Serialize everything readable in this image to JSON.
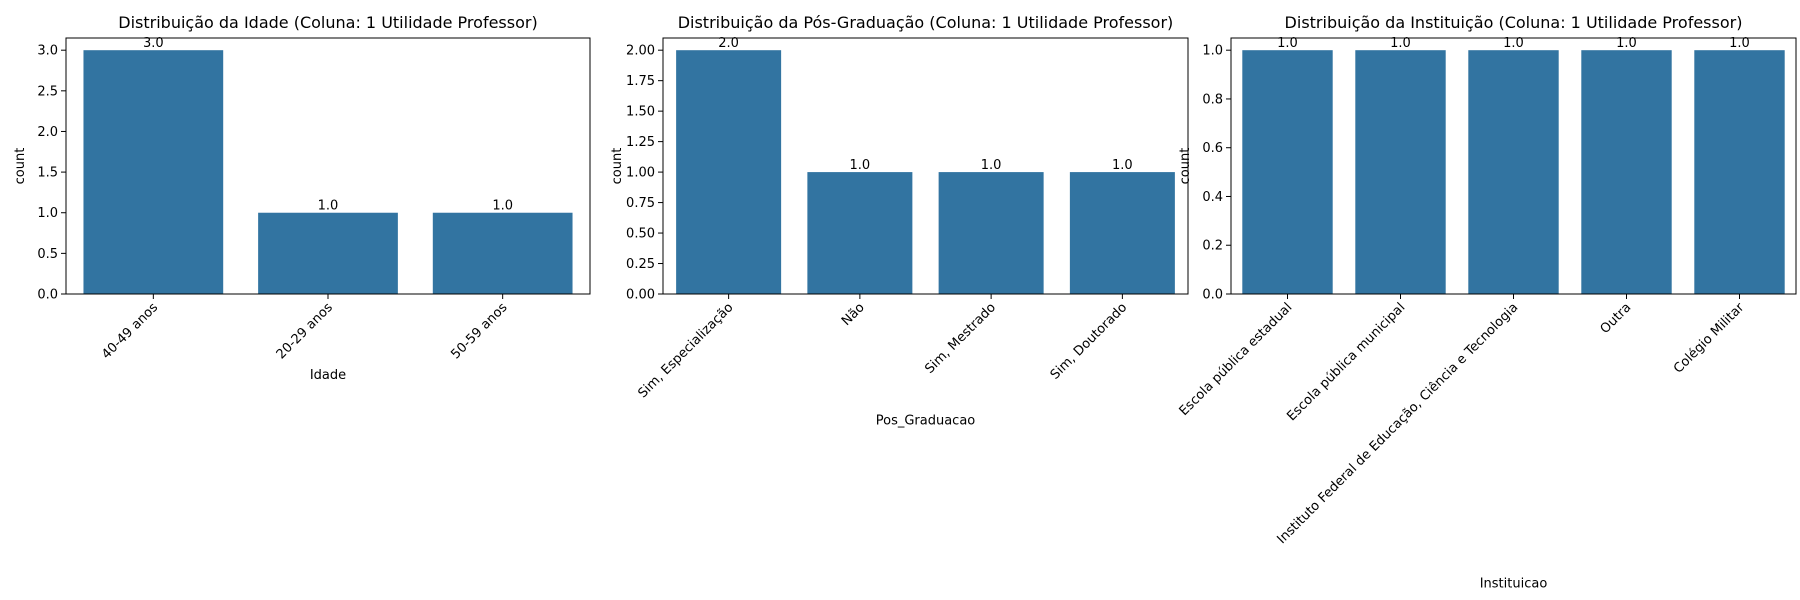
{
  "colors": {
    "bar": "#3274a1"
  },
  "chart_data": [
    {
      "type": "bar",
      "title": "Distribuição da Idade (Coluna: 1 Utilidade Professor)",
      "xlabel": "Idade",
      "ylabel": "count",
      "categories": [
        "40-49 anos",
        "20-29 anos",
        "50-59 anos"
      ],
      "values": [
        3,
        1,
        1
      ],
      "data_labels": [
        "3.0",
        "1.0",
        "1.0"
      ],
      "ylim": [
        0,
        3.15
      ],
      "yticks": [
        0,
        0.5,
        1,
        1.5,
        2,
        2.5,
        3
      ],
      "ytick_labels": [
        "0.0",
        "0.5",
        "1.0",
        "1.5",
        "2.0",
        "2.5",
        "3.0"
      ],
      "grid": false
    },
    {
      "type": "bar",
      "title": "Distribuição da Pós-Graduação (Coluna: 1 Utilidade Professor)",
      "xlabel": "Pos_Graduacao",
      "ylabel": "count",
      "categories": [
        "Sim, Especialização",
        "Não",
        "Sim, Mestrado",
        "Sim, Doutorado"
      ],
      "values": [
        2,
        1,
        1,
        1
      ],
      "data_labels": [
        "2.0",
        "1.0",
        "1.0",
        "1.0"
      ],
      "ylim": [
        0,
        2.1
      ],
      "yticks": [
        0,
        0.25,
        0.5,
        0.75,
        1,
        1.25,
        1.5,
        1.75,
        2
      ],
      "ytick_labels": [
        "0.00",
        "0.25",
        "0.50",
        "0.75",
        "1.00",
        "1.25",
        "1.50",
        "1.75",
        "2.00"
      ],
      "grid": false
    },
    {
      "type": "bar",
      "title": "Distribuição da Instituição (Coluna: 1 Utilidade Professor)",
      "xlabel": "Instituicao",
      "ylabel": "count",
      "categories": [
        "Escola pública estadual",
        "Escola pública municipal",
        "Instituto Federal de Educação, Ciência e Tecnologia",
        "Outra",
        "Colégio Militar"
      ],
      "values": [
        1,
        1,
        1,
        1,
        1
      ],
      "data_labels": [
        "1.0",
        "1.0",
        "1.0",
        "1.0",
        "1.0"
      ],
      "ylim": [
        0,
        1.05
      ],
      "yticks": [
        0,
        0.2,
        0.4,
        0.6,
        0.8,
        1
      ],
      "ytick_labels": [
        "0.0",
        "0.2",
        "0.4",
        "0.6",
        "0.8",
        "1.0"
      ],
      "grid": false
    }
  ]
}
